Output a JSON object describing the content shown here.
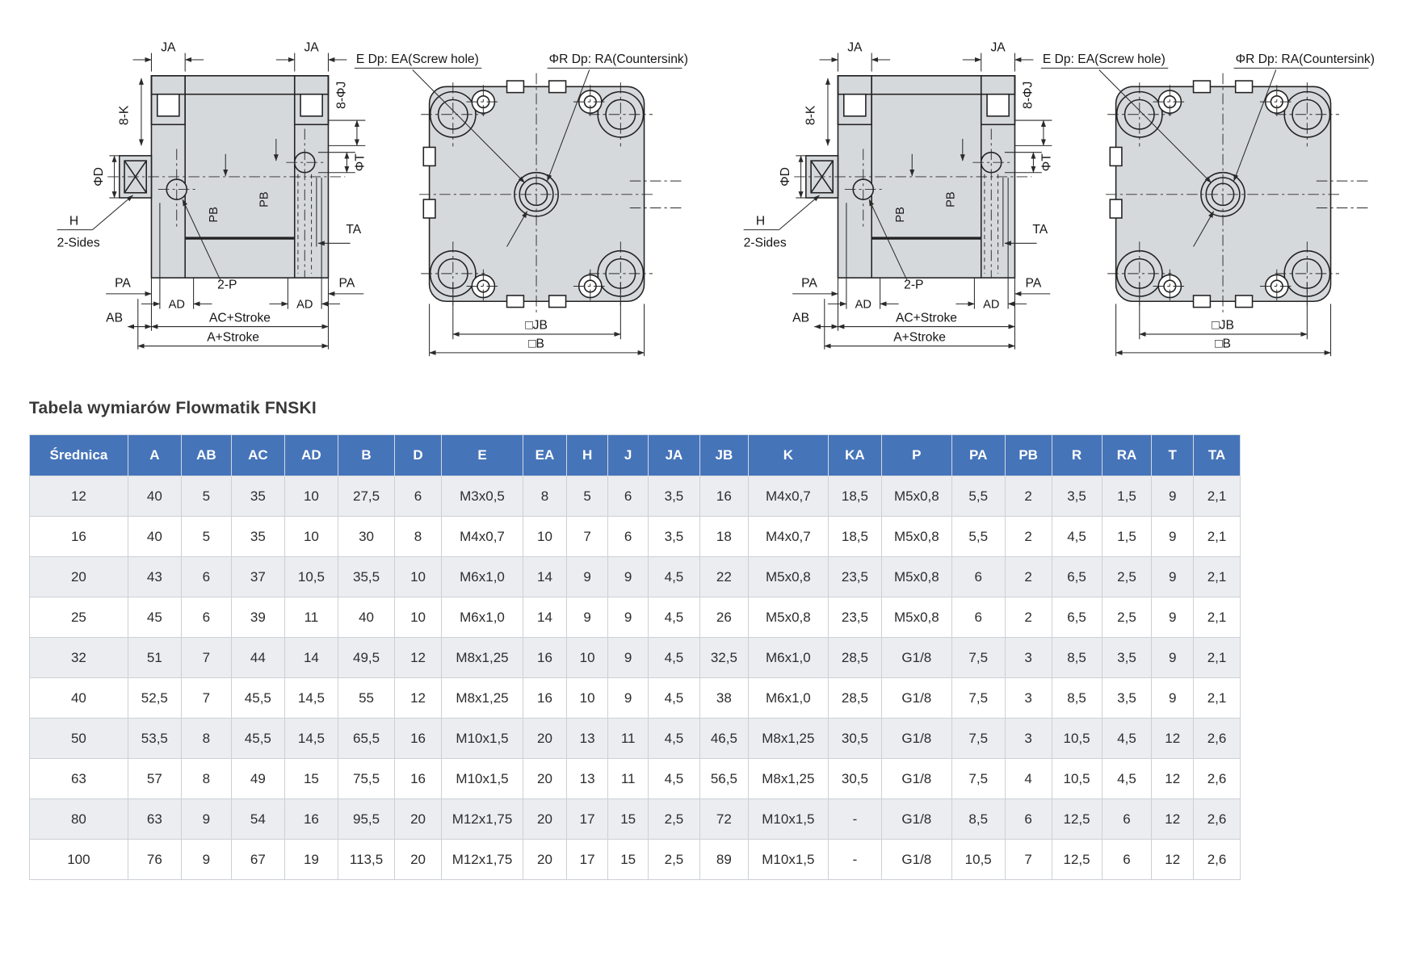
{
  "page": {
    "title": "Tabela wymiarów Flowmatik FNSKI"
  },
  "colors": {
    "header_bg": "#4674b9",
    "row_alt": "#ebedf0",
    "draw_fill": "#d6d9dc"
  },
  "diagram": {
    "labels": {
      "ja": "JA",
      "j_count": "8-ΦJ",
      "k_count": "8-K",
      "phi_d": "ΦD",
      "h": "H",
      "two_sides": "2-Sides",
      "pb": "PB",
      "phi_t": "ΦT",
      "ta": "TA",
      "pa": "PA",
      "ad": "AD",
      "two_p": "2-P",
      "ab": "AB",
      "ac_stroke": "AC+Stroke",
      "a_stroke": "A+Stroke",
      "screw_hole": "E Dp: EA(Screw hole)",
      "countersink": "ΦR Dp: RA(Countersink)",
      "jb": "□JB",
      "b": "□B"
    }
  },
  "table": {
    "columns": [
      "Średnica",
      "A",
      "AB",
      "AC",
      "AD",
      "B",
      "D",
      "E",
      "EA",
      "H",
      "J",
      "JA",
      "JB",
      "K",
      "KA",
      "P",
      "PA",
      "PB",
      "R",
      "RA",
      "T",
      "TA"
    ],
    "rows": [
      [
        "12",
        "40",
        "5",
        "35",
        "10",
        "27,5",
        "6",
        "M3x0,5",
        "8",
        "5",
        "6",
        "3,5",
        "16",
        "M4x0,7",
        "18,5",
        "M5x0,8",
        "5,5",
        "2",
        "3,5",
        "1,5",
        "9",
        "2,1"
      ],
      [
        "16",
        "40",
        "5",
        "35",
        "10",
        "30",
        "8",
        "M4x0,7",
        "10",
        "7",
        "6",
        "3,5",
        "18",
        "M4x0,7",
        "18,5",
        "M5x0,8",
        "5,5",
        "2",
        "4,5",
        "1,5",
        "9",
        "2,1"
      ],
      [
        "20",
        "43",
        "6",
        "37",
        "10,5",
        "35,5",
        "10",
        "M6x1,0",
        "14",
        "9",
        "9",
        "4,5",
        "22",
        "M5x0,8",
        "23,5",
        "M5x0,8",
        "6",
        "2",
        "6,5",
        "2,5",
        "9",
        "2,1"
      ],
      [
        "25",
        "45",
        "6",
        "39",
        "11",
        "40",
        "10",
        "M6x1,0",
        "14",
        "9",
        "9",
        "4,5",
        "26",
        "M5x0,8",
        "23,5",
        "M5x0,8",
        "6",
        "2",
        "6,5",
        "2,5",
        "9",
        "2,1"
      ],
      [
        "32",
        "51",
        "7",
        "44",
        "14",
        "49,5",
        "12",
        "M8x1,25",
        "16",
        "10",
        "9",
        "4,5",
        "32,5",
        "M6x1,0",
        "28,5",
        "G1/8",
        "7,5",
        "3",
        "8,5",
        "3,5",
        "9",
        "2,1"
      ],
      [
        "40",
        "52,5",
        "7",
        "45,5",
        "14,5",
        "55",
        "12",
        "M8x1,25",
        "16",
        "10",
        "9",
        "4,5",
        "38",
        "M6x1,0",
        "28,5",
        "G1/8",
        "7,5",
        "3",
        "8,5",
        "3,5",
        "9",
        "2,1"
      ],
      [
        "50",
        "53,5",
        "8",
        "45,5",
        "14,5",
        "65,5",
        "16",
        "M10x1,5",
        "20",
        "13",
        "11",
        "4,5",
        "46,5",
        "M8x1,25",
        "30,5",
        "G1/8",
        "7,5",
        "3",
        "10,5",
        "4,5",
        "12",
        "2,6"
      ],
      [
        "63",
        "57",
        "8",
        "49",
        "15",
        "75,5",
        "16",
        "M10x1,5",
        "20",
        "13",
        "11",
        "4,5",
        "56,5",
        "M8x1,25",
        "30,5",
        "G1/8",
        "7,5",
        "4",
        "10,5",
        "4,5",
        "12",
        "2,6"
      ],
      [
        "80",
        "63",
        "9",
        "54",
        "16",
        "95,5",
        "20",
        "M12x1,75",
        "20",
        "17",
        "15",
        "2,5",
        "72",
        "M10x1,5",
        "-",
        "G1/8",
        "8,5",
        "6",
        "12,5",
        "6",
        "12",
        "2,6"
      ],
      [
        "100",
        "76",
        "9",
        "67",
        "19",
        "113,5",
        "20",
        "M12x1,75",
        "20",
        "17",
        "15",
        "2,5",
        "89",
        "M10x1,5",
        "-",
        "G1/8",
        "10,5",
        "7",
        "12,5",
        "6",
        "12",
        "2,6"
      ]
    ]
  }
}
